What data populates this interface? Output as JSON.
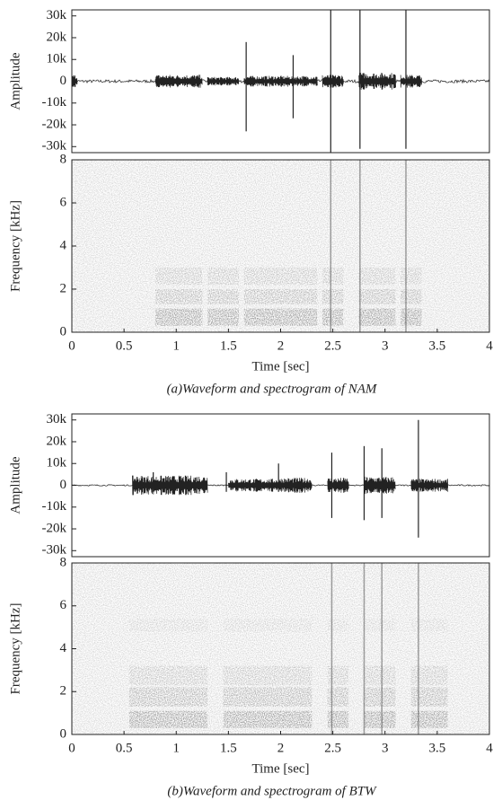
{
  "chart_data": [
    {
      "type": "waveform",
      "ylabel": "Amplitude",
      "xlim": [
        0,
        4
      ],
      "ylim": [
        -32768,
        32767
      ],
      "yticks": [
        {
          "value": 30000,
          "label": "30k"
        },
        {
          "value": 20000,
          "label": "20k"
        },
        {
          "value": 10000,
          "label": "10k"
        },
        0,
        {
          "value": -10000,
          "label": "-10k"
        },
        {
          "value": -20000,
          "label": "-20k"
        },
        {
          "value": -30000,
          "label": "-30k"
        }
      ],
      "noise": 700,
      "bursts": [
        {
          "start": 0,
          "end": 0.05,
          "amplitude": 3000
        },
        {
          "start": 0.8,
          "end": 1.25,
          "amplitude": 3000
        },
        {
          "start": 1.3,
          "end": 1.6,
          "amplitude": 2000
        },
        {
          "start": 1.65,
          "end": 2.35,
          "amplitude": 2500
        },
        {
          "start": 2.4,
          "end": 2.6,
          "amplitude": 3000
        },
        {
          "start": 2.75,
          "end": 3.1,
          "amplitude": 4000
        },
        {
          "start": 3.15,
          "end": 3.35,
          "amplitude": 3000
        }
      ],
      "spikes": [
        {
          "t": 1.67,
          "high": 18000,
          "low": -23000
        },
        {
          "t": 2.12,
          "high": 12000,
          "low": -17000
        },
        {
          "t": 2.48,
          "high": 32767,
          "low": -32768
        },
        {
          "t": 2.76,
          "high": 32767,
          "low": -31000
        },
        {
          "t": 3.2,
          "high": 32767,
          "low": -31000
        }
      ]
    },
    {
      "type": "spectrogram",
      "ylabel": "Frequency [kHz]",
      "xlabel": "Time [sec]",
      "caption": "(a)Waveform and spectrogram of NAM",
      "xlim": [
        0,
        4
      ],
      "ylim": [
        0,
        8
      ],
      "xticks": [
        0,
        0.5,
        1,
        1.5,
        2,
        2.5,
        3,
        3.5,
        4
      ],
      "yticks": [
        0,
        2,
        4,
        6,
        8
      ],
      "segments": [
        {
          "start": 0.8,
          "end": 1.25
        },
        {
          "start": 1.3,
          "end": 1.6
        },
        {
          "start": 1.65,
          "end": 2.35
        },
        {
          "start": 2.4,
          "end": 2.6
        },
        {
          "start": 2.75,
          "end": 3.1
        },
        {
          "start": 3.15,
          "end": 3.35
        }
      ],
      "bands": [
        {
          "low": 0.3,
          "high": 1.1,
          "intensity": 0.75
        },
        {
          "low": 1.3,
          "high": 2.0,
          "intensity": 0.45
        },
        {
          "low": 2.2,
          "high": 3.0,
          "intensity": 0.3
        }
      ],
      "impulses": [
        2.48,
        2.76,
        3.2
      ]
    },
    {
      "type": "waveform",
      "ylabel": "Amplitude",
      "xlim": [
        0,
        4
      ],
      "ylim": [
        -32768,
        32767
      ],
      "yticks": [
        {
          "value": 30000,
          "label": "30k"
        },
        {
          "value": 20000,
          "label": "20k"
        },
        {
          "value": 10000,
          "label": "10k"
        },
        0,
        {
          "value": -10000,
          "label": "-10k"
        },
        {
          "value": -20000,
          "label": "-20k"
        },
        {
          "value": -30000,
          "label": "-30k"
        }
      ],
      "noise": 300,
      "bursts": [
        {
          "start": 0.58,
          "end": 1.3,
          "amplitude": 4500
        },
        {
          "start": 1.5,
          "end": 2.0,
          "amplitude": 3000
        },
        {
          "start": 2.0,
          "end": 2.3,
          "amplitude": 3500
        },
        {
          "start": 2.45,
          "end": 2.65,
          "amplitude": 3500
        },
        {
          "start": 2.8,
          "end": 3.1,
          "amplitude": 4000
        },
        {
          "start": 3.25,
          "end": 3.6,
          "amplitude": 3000
        }
      ],
      "spikes": [
        {
          "t": 0.78,
          "high": 6000,
          "low": -3000
        },
        {
          "t": 1.48,
          "high": 6000,
          "low": -3000
        },
        {
          "t": 1.98,
          "high": 10000,
          "low": -3000
        },
        {
          "t": 2.49,
          "high": 15000,
          "low": -15000
        },
        {
          "t": 2.8,
          "high": 18000,
          "low": -16000
        },
        {
          "t": 2.97,
          "high": 17000,
          "low": -15000
        },
        {
          "t": 3.32,
          "high": 30000,
          "low": -24000
        }
      ]
    },
    {
      "type": "spectrogram",
      "ylabel": "Frequency [kHz]",
      "xlabel": "Time [sec]",
      "caption": "(b)Waveform and spectrogram of BTW",
      "xlim": [
        0,
        4
      ],
      "ylim": [
        0,
        8
      ],
      "xticks": [
        0,
        0.5,
        1,
        1.5,
        2,
        2.5,
        3,
        3.5,
        4
      ],
      "yticks": [
        0,
        2,
        4,
        6,
        8
      ],
      "segments": [
        {
          "start": 0.55,
          "end": 1.3
        },
        {
          "start": 1.45,
          "end": 2.3
        },
        {
          "start": 2.45,
          "end": 2.65
        },
        {
          "start": 2.8,
          "end": 3.1
        },
        {
          "start": 3.25,
          "end": 3.6
        }
      ],
      "bands": [
        {
          "low": 0.3,
          "high": 1.1,
          "intensity": 0.75
        },
        {
          "low": 1.3,
          "high": 2.2,
          "intensity": 0.5
        },
        {
          "low": 2.3,
          "high": 3.2,
          "intensity": 0.3
        },
        {
          "low": 4.8,
          "high": 5.4,
          "intensity": 0.12
        }
      ],
      "impulses": [
        2.49,
        2.8,
        2.97,
        3.32
      ]
    }
  ]
}
